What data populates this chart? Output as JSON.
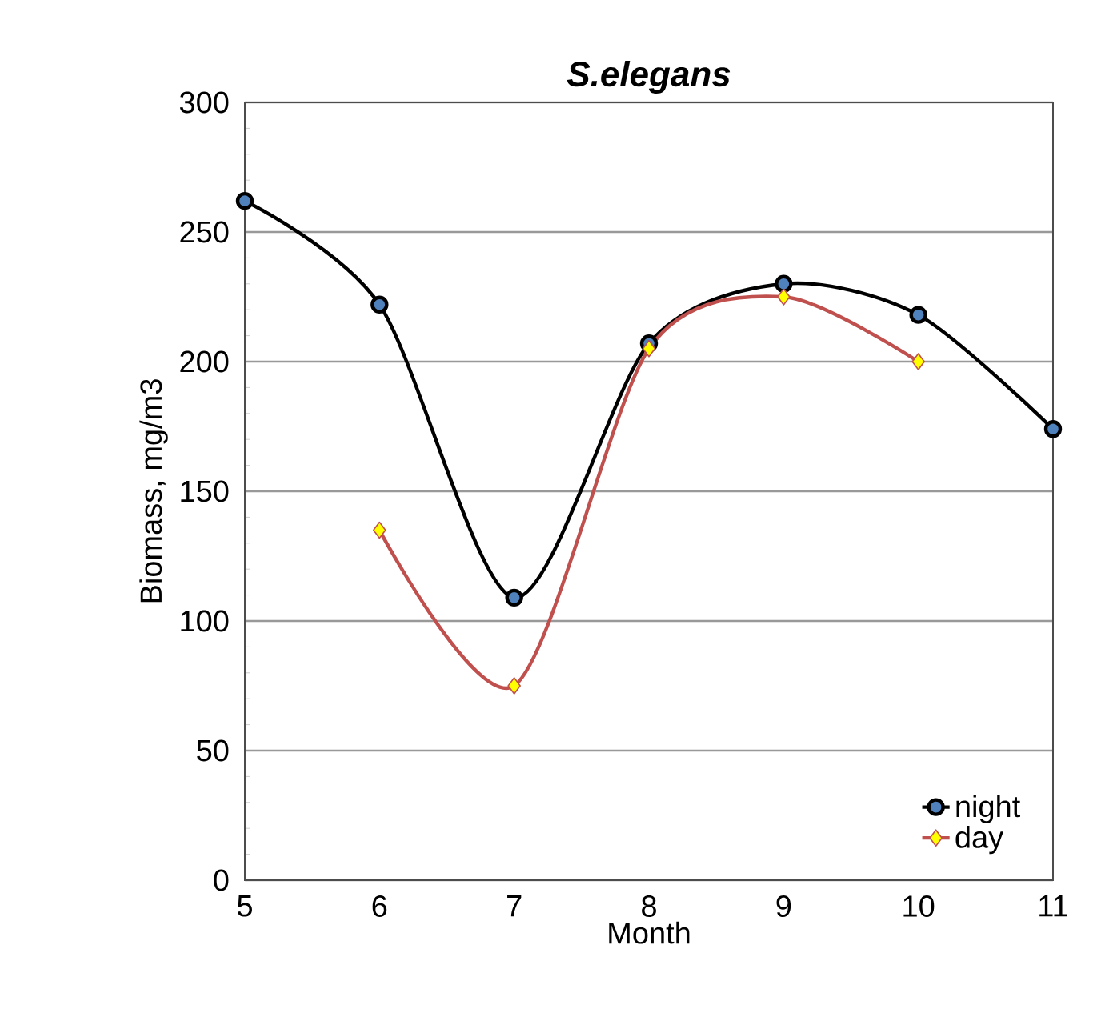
{
  "chart_data": {
    "type": "line",
    "title": "S.elegans",
    "xlabel": "Month",
    "ylabel": "Biomass, mg/m3",
    "x": [
      5,
      6,
      7,
      8,
      9,
      10,
      11
    ],
    "series": [
      {
        "name": "night",
        "color": "#000000",
        "marker": "circle",
        "values": [
          262,
          222,
          109,
          207,
          230,
          218,
          174
        ]
      },
      {
        "name": "day",
        "color": "#c0504d",
        "marker": "diamond",
        "values": [
          null,
          135,
          75,
          205,
          225,
          200,
          null
        ]
      }
    ],
    "xlim": [
      5,
      11
    ],
    "xticks": [
      5,
      6,
      7,
      8,
      9,
      10,
      11
    ],
    "ylim": [
      0,
      300
    ],
    "yticks": [
      0,
      50,
      100,
      150,
      200,
      250,
      300
    ],
    "grid": "y",
    "legend": "bottom right",
    "line_style": "solid"
  }
}
